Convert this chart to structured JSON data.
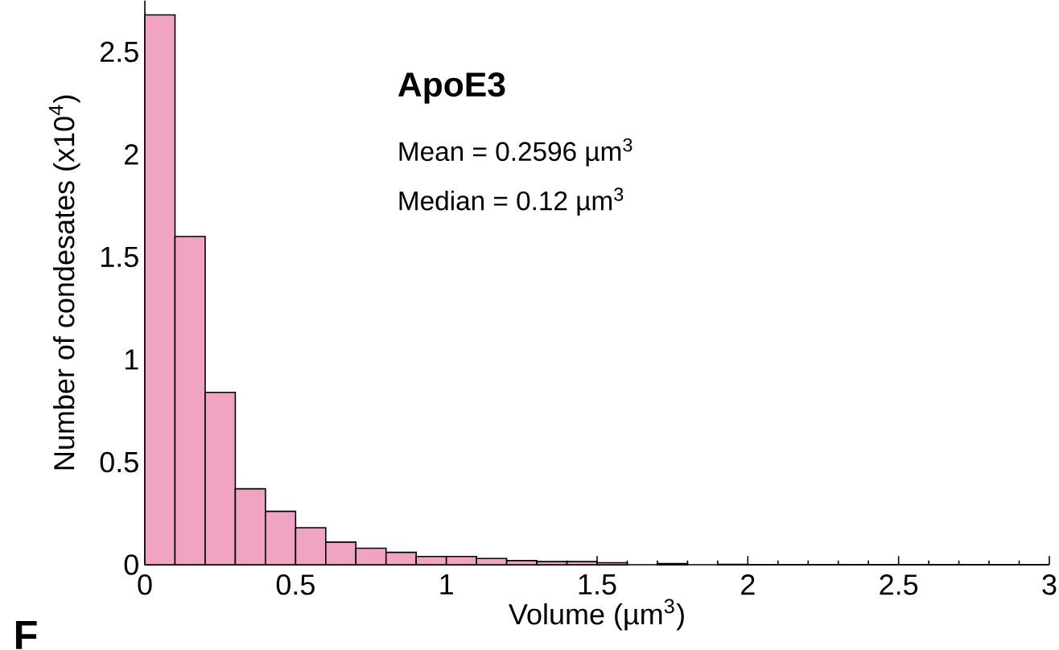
{
  "chart_data": {
    "type": "histogram",
    "xlabel": "Volume (µm$^{3}$)",
    "ylabel": "Number of condesates (x10$^{4}$)",
    "annotations": [
      "**ApoE3**",
      "Mean = 0.2596 µm$^{3}$",
      "Median = 0.12 µm$^{3}$",
      "**F**"
    ],
    "bins": [
      0,
      0.1,
      0.2,
      0.3,
      0.4,
      0.5,
      0.6,
      0.7,
      0.8,
      0.9,
      1.0,
      1.1,
      1.2,
      1.3,
      1.4,
      1.5,
      1.6,
      1.7,
      1.8,
      1.9,
      2.0,
      2.1,
      2.2,
      2.3,
      2.4,
      2.5,
      2.6,
      2.7,
      2.8,
      2.9,
      3.0
    ],
    "values": [
      2.68,
      1.6,
      0.84,
      0.37,
      0.26,
      0.18,
      0.11,
      0.08,
      0.06,
      0.04,
      0.04,
      0.03,
      0.02,
      0.015,
      0.015,
      0.01,
      null,
      0.006,
      null,
      0.002,
      0,
      0,
      0,
      0,
      0,
      0,
      0,
      0,
      0,
      0
    ],
    "color": "#f0a3c3",
    "xlim": [
      0,
      3
    ],
    "xticks": [
      0,
      0.5,
      1,
      1.5,
      2,
      2.5,
      3
    ],
    "ylim": [
      0,
      2.75
    ],
    "yticks": [
      0,
      0.5,
      1,
      1.5,
      2,
      2.5
    ],
    "grid": false
  }
}
